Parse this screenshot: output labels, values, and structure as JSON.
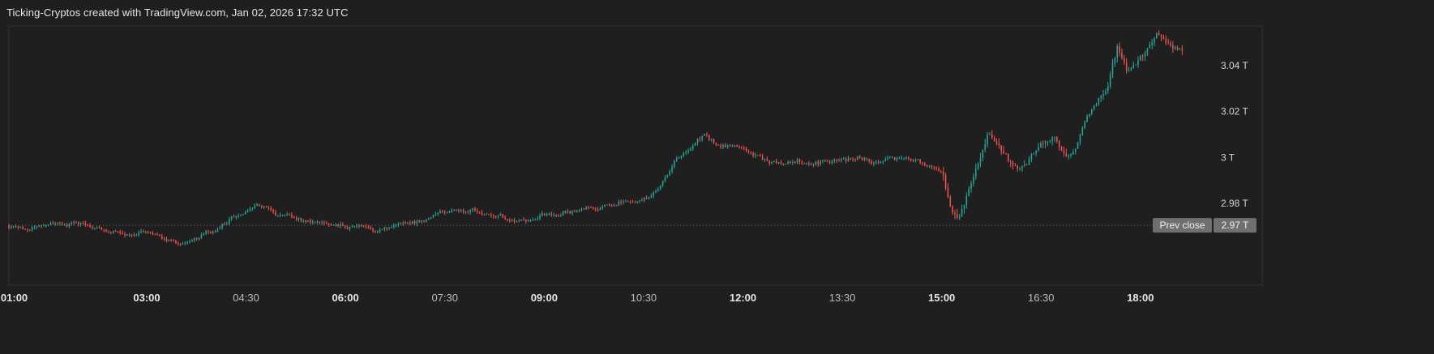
{
  "header": {
    "title": "Ticking-Cryptos created with TradingView.com, Jan 02, 2026 17:32 UTC"
  },
  "colors": {
    "background": "#1f1f1f",
    "up": "#26a69a",
    "down": "#ef5350",
    "text": "#d1d4dc",
    "prev_close_line": "#6b6b6b",
    "prev_close_badge": "#6f6f6f"
  },
  "chart_data": {
    "type": "candlestick",
    "title": "",
    "xlabel": "",
    "ylabel": "",
    "x_ticks": [
      {
        "label": "01:00",
        "hour": 1.0,
        "bold": true
      },
      {
        "label": "03:00",
        "hour": 3.0,
        "bold": true
      },
      {
        "label": "04:30",
        "hour": 4.5,
        "bold": false
      },
      {
        "label": "06:00",
        "hour": 6.0,
        "bold": true
      },
      {
        "label": "07:30",
        "hour": 7.5,
        "bold": false
      },
      {
        "label": "09:00",
        "hour": 9.0,
        "bold": true
      },
      {
        "label": "10:30",
        "hour": 10.5,
        "bold": false
      },
      {
        "label": "12:00",
        "hour": 12.0,
        "bold": true
      },
      {
        "label": "13:30",
        "hour": 13.5,
        "bold": false
      },
      {
        "label": "15:00",
        "hour": 15.0,
        "bold": true
      },
      {
        "label": "16:30",
        "hour": 16.5,
        "bold": false
      },
      {
        "label": "18:00",
        "hour": 18.0,
        "bold": true
      }
    ],
    "y_ticks": [
      {
        "label": "2.98 T",
        "value": 2.98
      },
      {
        "label": "3 T",
        "value": 3.0
      },
      {
        "label": "3.02 T",
        "value": 3.02
      },
      {
        "label": "3.04 T",
        "value": 3.04
      }
    ],
    "xlim": [
      0.92,
      19.14
    ],
    "ylim": [
      2.9445,
      3.0572
    ],
    "prev_close": {
      "label": "Prev close",
      "value_label": "2.97 T",
      "value": 2.9705
    },
    "series_anchors": [
      [
        0.92,
        2.9705
      ],
      [
        1.1,
        2.9685
      ],
      [
        1.3,
        2.9695
      ],
      [
        1.5,
        2.9705
      ],
      [
        1.7,
        2.9705
      ],
      [
        1.9,
        2.9715
      ],
      [
        2.1,
        2.97
      ],
      [
        2.3,
        2.969
      ],
      [
        2.5,
        2.9685
      ],
      [
        2.7,
        2.967
      ],
      [
        2.9,
        2.9675
      ],
      [
        3.1,
        2.966
      ],
      [
        3.3,
        2.9645
      ],
      [
        3.5,
        2.963
      ],
      [
        3.7,
        2.964
      ],
      [
        3.9,
        2.9665
      ],
      [
        4.1,
        2.969
      ],
      [
        4.3,
        2.974
      ],
      [
        4.5,
        2.9755
      ],
      [
        4.65,
        2.979
      ],
      [
        4.8,
        2.9775
      ],
      [
        5.0,
        2.975
      ],
      [
        5.2,
        2.9735
      ],
      [
        5.4,
        2.9725
      ],
      [
        5.6,
        2.971
      ],
      [
        5.8,
        2.97
      ],
      [
        6.0,
        2.9695
      ],
      [
        6.2,
        2.97
      ],
      [
        6.4,
        2.9685
      ],
      [
        6.6,
        2.9695
      ],
      [
        6.8,
        2.971
      ],
      [
        7.0,
        2.9715
      ],
      [
        7.2,
        2.973
      ],
      [
        7.4,
        2.9755
      ],
      [
        7.6,
        2.9775
      ],
      [
        7.8,
        2.977
      ],
      [
        8.0,
        2.976
      ],
      [
        8.2,
        2.976
      ],
      [
        8.4,
        2.9735
      ],
      [
        8.6,
        2.973
      ],
      [
        8.8,
        2.9725
      ],
      [
        9.0,
        2.975
      ],
      [
        9.2,
        2.976
      ],
      [
        9.4,
        2.977
      ],
      [
        9.6,
        2.978
      ],
      [
        9.8,
        2.9785
      ],
      [
        10.0,
        2.9795
      ],
      [
        10.2,
        2.981
      ],
      [
        10.4,
        2.9815
      ],
      [
        10.6,
        2.983
      ],
      [
        10.8,
        2.99
      ],
      [
        11.0,
        3.0005
      ],
      [
        11.2,
        3.003
      ],
      [
        11.4,
        3.01
      ],
      [
        11.6,
        3.005
      ],
      [
        11.8,
        3.005
      ],
      [
        12.0,
        3.0035
      ],
      [
        12.2,
        3.0005
      ],
      [
        12.4,
        2.9985
      ],
      [
        12.6,
        2.998
      ],
      [
        12.8,
        2.9985
      ],
      [
        13.0,
        2.998
      ],
      [
        13.2,
        2.9985
      ],
      [
        13.4,
        2.9985
      ],
      [
        13.6,
        2.9995
      ],
      [
        13.8,
        2.9995
      ],
      [
        14.0,
        2.998
      ],
      [
        14.2,
        2.999
      ],
      [
        14.4,
        3.0
      ],
      [
        14.6,
        2.999
      ],
      [
        14.8,
        2.9965
      ],
      [
        15.0,
        2.993
      ],
      [
        15.15,
        2.976
      ],
      [
        15.28,
        2.9745
      ],
      [
        15.4,
        2.985
      ],
      [
        15.55,
        2.997
      ],
      [
        15.7,
        3.011
      ],
      [
        15.85,
        3.006
      ],
      [
        16.0,
        2.999
      ],
      [
        16.15,
        2.9945
      ],
      [
        16.3,
        2.9985
      ],
      [
        16.5,
        3.006
      ],
      [
        16.7,
        3.0095
      ],
      [
        16.85,
        3.002
      ],
      [
        17.0,
        3.002
      ],
      [
        17.2,
        3.0185
      ],
      [
        17.35,
        3.025
      ],
      [
        17.5,
        3.029
      ],
      [
        17.65,
        3.048
      ],
      [
        17.8,
        3.038
      ],
      [
        17.95,
        3.041
      ],
      [
        18.1,
        3.046
      ],
      [
        18.25,
        3.054
      ],
      [
        18.4,
        3.05
      ],
      [
        18.55,
        3.047
      ],
      [
        18.65,
        3.045
      ]
    ],
    "candle_interval_hours": 0.035,
    "last_point": {
      "hour": 18.65,
      "close": 3.045
    }
  }
}
